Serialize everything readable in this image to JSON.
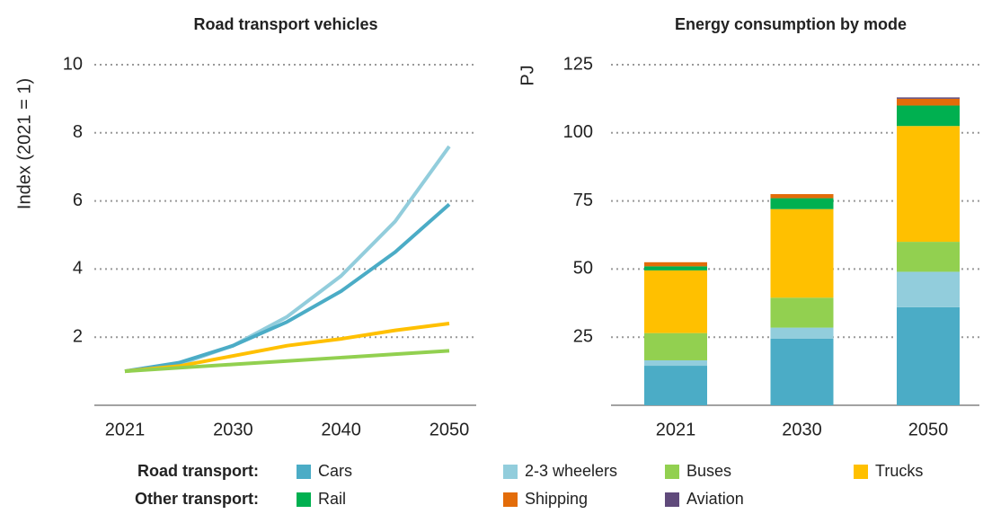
{
  "chart_data": [
    {
      "type": "line",
      "title": "Road transport vehicles",
      "ylabel": "Index (2021 = 1)",
      "categories": [
        "2021",
        null,
        "2030",
        null,
        "2040",
        null,
        "2050"
      ],
      "ylim": [
        0,
        10
      ],
      "yticks": [
        2,
        4,
        6,
        8,
        10
      ],
      "grid": true,
      "series": [
        {
          "name": "2-3 wheelers",
          "color": "#92cddc",
          "values": [
            1,
            1.2,
            1.75,
            2.6,
            3.8,
            5.4,
            7.6
          ]
        },
        {
          "name": "Cars",
          "color": "#4bacc6",
          "values": [
            1,
            1.25,
            1.75,
            2.45,
            3.35,
            4.5,
            5.9
          ]
        },
        {
          "name": "Trucks",
          "color": "#ffc000",
          "values": [
            1,
            1.15,
            1.45,
            1.75,
            1.95,
            2.2,
            2.4
          ]
        },
        {
          "name": "Buses",
          "color": "#92d050",
          "values": [
            1,
            1.1,
            1.2,
            1.3,
            1.4,
            1.5,
            1.6
          ]
        }
      ]
    },
    {
      "type": "stacked_bar",
      "title": "Energy consumption by mode",
      "ylabel": "PJ",
      "categories": [
        "2021",
        "2030",
        "2050"
      ],
      "ylim": [
        0,
        125
      ],
      "yticks": [
        25,
        50,
        75,
        100,
        125
      ],
      "grid": true,
      "series": [
        {
          "name": "Cars",
          "color": "#4bacc6",
          "values": [
            14.5,
            24.5,
            36
          ]
        },
        {
          "name": "2-3 wheelers",
          "color": "#92cddc",
          "values": [
            2,
            4,
            13
          ]
        },
        {
          "name": "Buses",
          "color": "#92d050",
          "values": [
            10,
            11,
            11
          ]
        },
        {
          "name": "Trucks",
          "color": "#ffc000",
          "values": [
            23,
            32.5,
            42.5
          ]
        },
        {
          "name": "Rail",
          "color": "#00b050",
          "values": [
            1.5,
            4,
            7.5
          ]
        },
        {
          "name": "Shipping",
          "color": "#e36c09",
          "values": [
            1.5,
            1.5,
            2.5
          ]
        },
        {
          "name": "Aviation",
          "color": "#604a7b",
          "values": [
            0,
            0,
            0.5
          ]
        }
      ]
    }
  ],
  "legend": {
    "groups": [
      "Road transport:",
      "Other transport:"
    ]
  }
}
